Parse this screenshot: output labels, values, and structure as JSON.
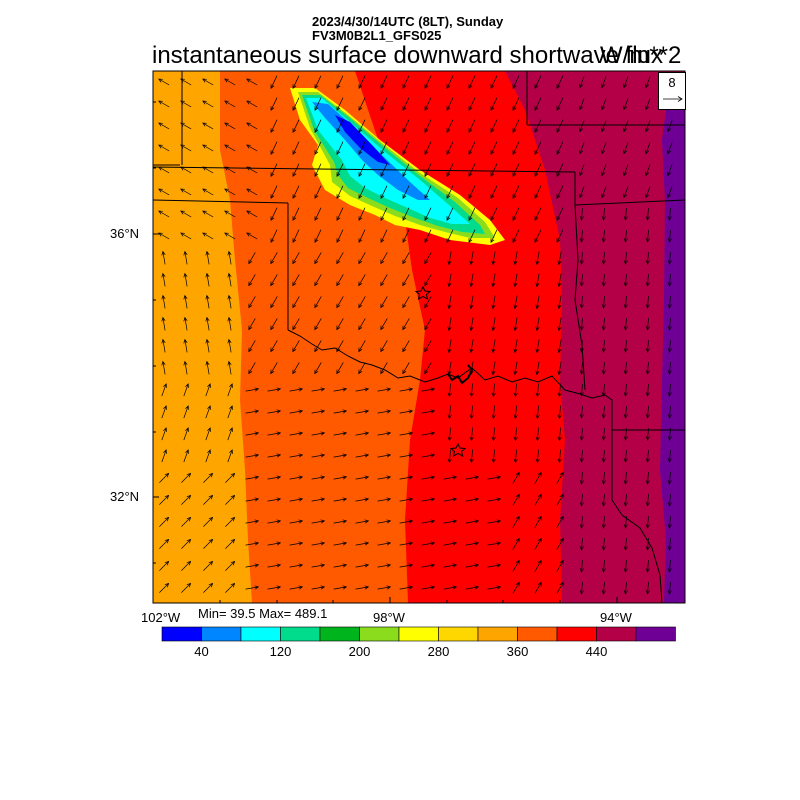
{
  "header": {
    "line1": "2023/4/30/14UTC (8LT), Sunday",
    "line2": "FV3M0B2L1_GFS025"
  },
  "title": "instantaneous surface downward shortwave flux",
  "units": "W/m**2",
  "stats": "Min= 39.5 Max= 489.1",
  "reference_vector": {
    "label": "8"
  },
  "axes": {
    "lat_labels": [
      "36°N",
      "32°N"
    ],
    "lon_labels": [
      "102°W",
      "98°W",
      "94°W"
    ]
  },
  "colorbar": {
    "colors": [
      "#0000ff",
      "#0087ff",
      "#00ffff",
      "#00dc8c",
      "#00b41e",
      "#8cdc1e",
      "#ffff00",
      "#ffd700",
      "#ffa500",
      "#ff5a00",
      "#ff0000",
      "#b40046",
      "#6e0096"
    ],
    "labels": [
      "40",
      "120",
      "200",
      "280",
      "360",
      "440"
    ]
  },
  "icons": [
    "star-marker-icon",
    "arrow-right-icon"
  ]
}
